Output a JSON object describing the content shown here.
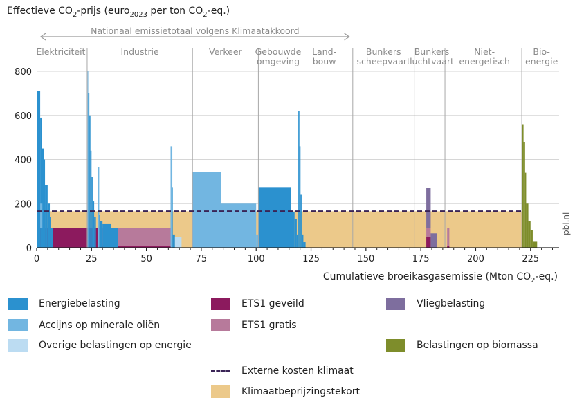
{
  "chart_data": {
    "type": "bar",
    "subtype": "variable-width step chart",
    "title_parts": [
      "Effectieve CO",
      "2",
      "-prijs (euro",
      "2023",
      " per ton CO",
      "2",
      "-eq.)"
    ],
    "xlabel_parts": [
      "Cumulatieve broeikasgasemissie (Mton CO",
      "2",
      "-eq.)"
    ],
    "xlim": [
      0,
      238
    ],
    "ylim": [
      0,
      800
    ],
    "xticks": [
      0,
      25,
      50,
      75,
      100,
      125,
      150,
      175,
      200,
      225
    ],
    "yticks": [
      0,
      200,
      400,
      600,
      800
    ],
    "grid": "horizontal",
    "national_total_label": "Nationaal emissietotaal volgens Klimaatakkoord",
    "national_total_range": [
      0,
      143
    ],
    "external_cost_label": "Externe kosten klimaat",
    "external_cost_value": 165,
    "sector_dividers": [
      23,
      71,
      101,
      119,
      144,
      172,
      186,
      221
    ],
    "sectors": [
      {
        "lines": [
          "Elektriciteit"
        ],
        "x": 11
      },
      {
        "lines": [
          "Industrie"
        ],
        "x": 47
      },
      {
        "lines": [
          "Verkeer"
        ],
        "x": 86
      },
      {
        "lines": [
          "Gebouwde",
          "omgeving"
        ],
        "x": 110
      },
      {
        "lines": [
          "Land-",
          "bouw"
        ],
        "x": 131
      },
      {
        "lines": [
          "Bunkers",
          "scheepvaart"
        ],
        "x": 158
      },
      {
        "lines": [
          "Bunkers",
          "luchtvaart"
        ],
        "x": 180
      },
      {
        "lines": [
          "Niet-",
          "energetisch"
        ],
        "x": 204
      },
      {
        "lines": [
          "Bio-",
          "energie"
        ],
        "x": 230
      }
    ],
    "series": [
      {
        "name": "Klimaatbeprijzingstekort",
        "color": "#ecc98a",
        "segments": [
          [
            0,
            221,
            0,
            165
          ]
        ]
      },
      {
        "name": "ETS1 geveild",
        "color": "#8c1a5e",
        "segments": [
          [
            0,
            23,
            0,
            88
          ],
          [
            23,
            28,
            0,
            88
          ],
          [
            28,
            61,
            0,
            8
          ],
          [
            177.5,
            179.5,
            0,
            50
          ],
          [
            187,
            188,
            0,
            8
          ]
        ]
      },
      {
        "name": "ETS1 gratis",
        "color": "#b77a9b",
        "segments": [
          [
            28,
            61,
            8,
            88
          ],
          [
            177.5,
            179.5,
            50,
            90
          ],
          [
            187,
            188,
            8,
            88
          ]
        ]
      },
      {
        "name": "Energiebelasting",
        "color": "#2b91cf",
        "segments": [
          [
            0.3,
            1.6,
            0,
            710
          ],
          [
            1.6,
            2.5,
            0,
            590
          ],
          [
            2.5,
            3.2,
            0,
            450
          ],
          [
            3.2,
            3.8,
            0,
            400
          ],
          [
            3.8,
            5,
            0,
            285
          ],
          [
            5,
            6,
            0,
            200
          ],
          [
            6,
            6.5,
            0,
            140
          ],
          [
            6.5,
            7.5,
            0,
            90
          ],
          [
            23.5,
            24,
            0,
            700
          ],
          [
            24,
            24.5,
            0,
            600
          ],
          [
            24.5,
            25,
            0,
            440
          ],
          [
            25,
            25.5,
            0,
            320
          ],
          [
            25.5,
            26.2,
            0,
            210
          ],
          [
            26.2,
            27,
            0,
            140
          ],
          [
            28.5,
            29,
            0,
            150
          ],
          [
            29,
            30,
            0,
            120
          ],
          [
            30,
            34,
            0,
            110
          ],
          [
            34,
            37,
            0,
            90
          ],
          [
            61,
            62,
            0,
            275
          ],
          [
            62,
            63,
            0,
            60
          ],
          [
            101,
            116,
            0,
            275
          ],
          [
            116,
            117.5,
            0,
            160
          ],
          [
            117.5,
            118.5,
            0,
            130
          ],
          [
            118.5,
            119,
            0,
            60
          ],
          [
            119.2,
            119.7,
            0,
            620
          ],
          [
            119.7,
            120.2,
            0,
            460
          ],
          [
            120.2,
            120.7,
            0,
            240
          ],
          [
            120.7,
            121.5,
            0,
            60
          ],
          [
            121.5,
            122.5,
            0,
            25
          ]
        ]
      },
      {
        "name": "Accijns op minerale oliën",
        "color": "#72b6e1",
        "segments": [
          [
            1.6,
            2.6,
            88,
            200
          ],
          [
            23.2,
            23.5,
            0,
            800
          ],
          [
            28,
            28.5,
            0,
            365
          ],
          [
            61,
            61.8,
            0,
            460
          ],
          [
            71,
            84,
            0,
            345
          ],
          [
            84,
            100,
            0,
            200
          ],
          [
            100,
            101,
            0,
            60
          ]
        ]
      },
      {
        "name": "Overige belastingen op energie",
        "color": "#bcdcf2",
        "segments": [
          [
            0,
            0.3,
            0,
            800
          ],
          [
            63,
            66,
            0,
            50
          ]
        ]
      },
      {
        "name": "Vliegbelasting",
        "color": "#7e6e9e",
        "segments": [
          [
            177.5,
            179.5,
            90,
            270
          ],
          [
            179.5,
            182.5,
            0,
            65
          ]
        ]
      },
      {
        "name": "Belastingen op biomassa",
        "color": "#7e8d2b",
        "segments": [
          [
            221,
            221.8,
            0,
            560
          ],
          [
            221.8,
            222.5,
            0,
            480
          ],
          [
            222.5,
            223,
            0,
            340
          ],
          [
            223,
            224,
            0,
            200
          ],
          [
            224,
            225,
            0,
            120
          ],
          [
            225,
            226,
            0,
            80
          ],
          [
            226,
            228,
            0,
            30
          ]
        ]
      }
    ]
  },
  "legend": [
    {
      "label": "Energiebelasting",
      "color": "#2b91cf"
    },
    {
      "label": "Accijns op minerale oliën",
      "color": "#72b6e1"
    },
    {
      "label": "Overige belastingen op energie",
      "color": "#bcdcf2"
    },
    {
      "label": "ETS1 geveild",
      "color": "#8c1a5e"
    },
    {
      "label": "ETS1 gratis",
      "color": "#b77a9b"
    },
    {
      "label": "Vliegbelasting",
      "color": "#7e6e9e"
    },
    {
      "label": "Belastingen op biomassa",
      "color": "#7e8d2b"
    },
    {
      "label": "Externe kosten klimaat",
      "color": "#3a2456"
    },
    {
      "label": "Klimaatbeprijzingstekort",
      "color": "#ecc98a"
    }
  ],
  "credit": "pbl.nl"
}
